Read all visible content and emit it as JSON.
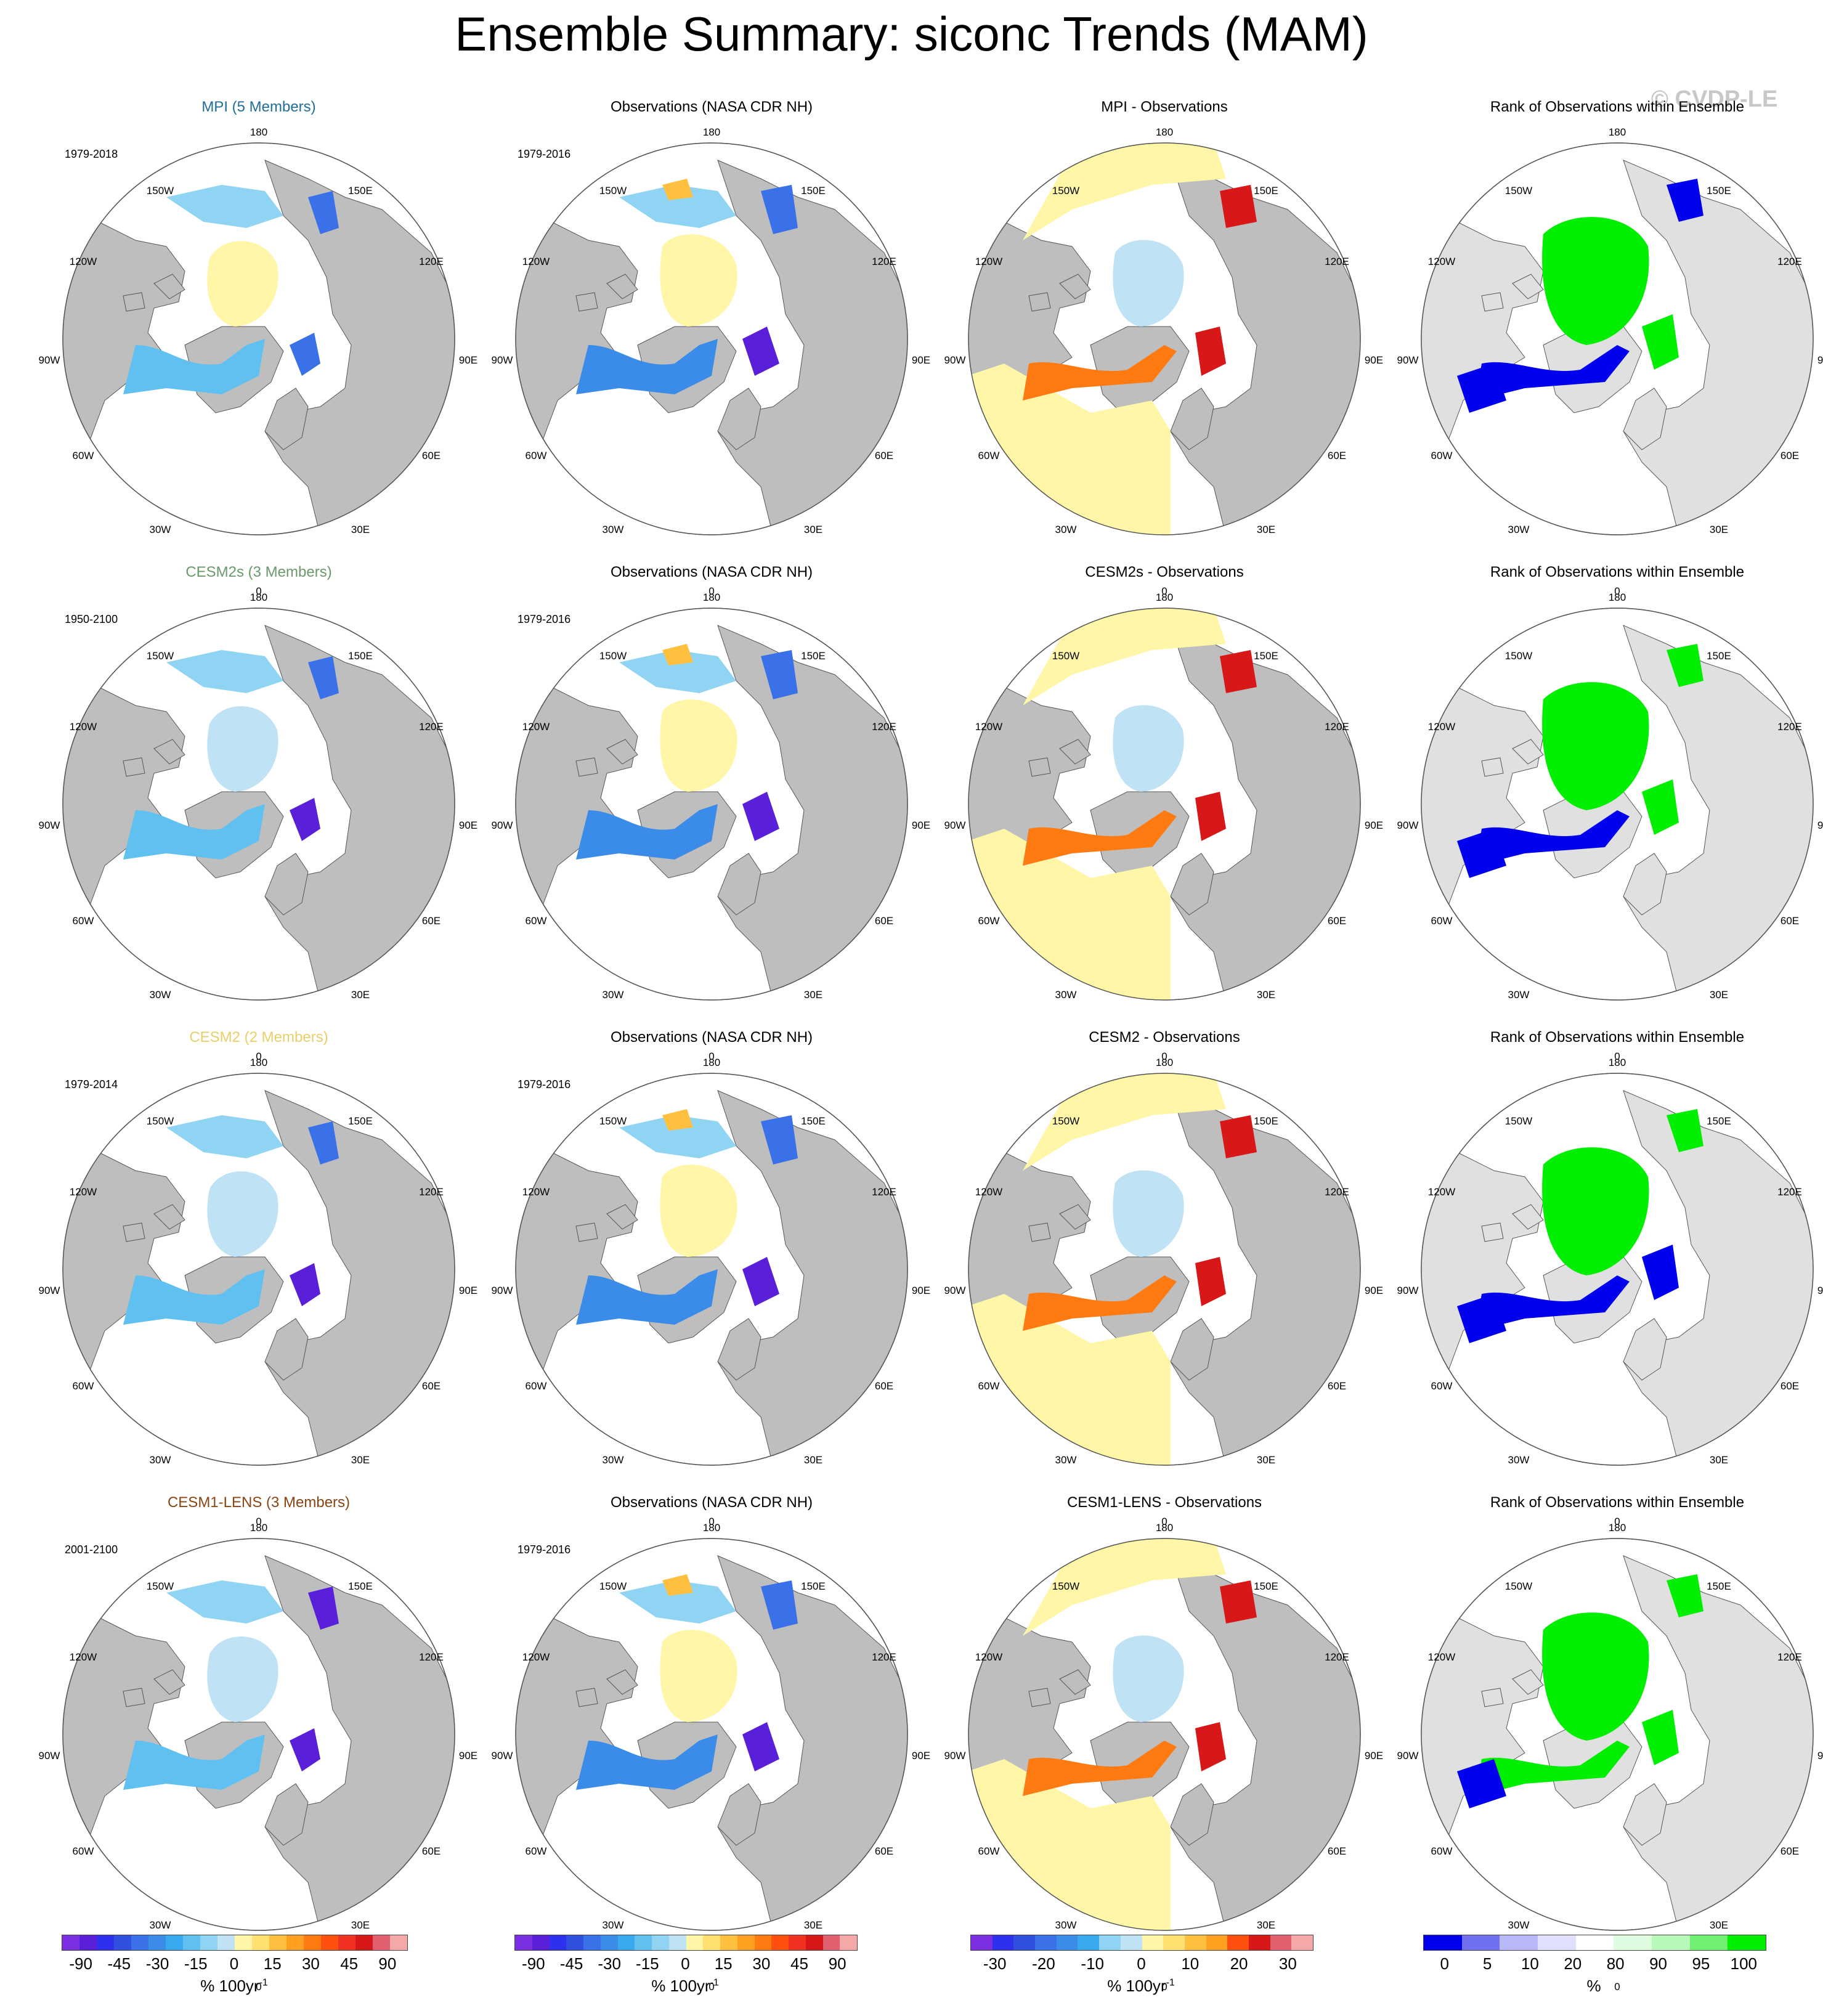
{
  "title": "Ensemble Summary: siconc Trends (MAM)",
  "watermark": "© CVDP-LE",
  "lon_labels": {
    "top": "180",
    "bottom": "0",
    "left_hi": "90W",
    "right_hi": "90E",
    "tl1": "150W",
    "tr1": "150E",
    "tl2": "120W",
    "tr2": "120E",
    "bl1": "60W",
    "br1": "60E",
    "bl2": "30W",
    "br2": "30E"
  },
  "rows": [
    {
      "model_title": "MPI (5 Members)",
      "model_color": "#1f6f9a",
      "model_period": "1979-2018",
      "obs_title": "Observations (NASA CDR NH)",
      "obs_period": "1979-2016",
      "diff_title": "MPI - Observations",
      "rank_title": "Rank of Observations within Ensemble"
    },
    {
      "model_title": "CESM2s (3 Members)",
      "model_color": "#6a9a6a",
      "model_period": "1950-2100",
      "obs_title": "Observations (NASA CDR NH)",
      "obs_period": "1979-2016",
      "diff_title": "CESM2s - Observations",
      "rank_title": "Rank of Observations within Ensemble"
    },
    {
      "model_title": "CESM2 (2 Members)",
      "model_color": "#e8cf6a",
      "model_period": "1979-2014",
      "obs_title": "Observations (NASA CDR NH)",
      "obs_period": "1979-2016",
      "diff_title": "CESM2 - Observations",
      "rank_title": "Rank of Observations within Ensemble"
    },
    {
      "model_title": "CESM1-LENS (3 Members)",
      "model_color": "#8b4513",
      "model_period": "2001-2100",
      "obs_title": "Observations (NASA CDR NH)",
      "obs_period": "1979-2016",
      "diff_title": "CESM1-LENS - Observations",
      "rank_title": "Rank of Observations within Ensemble"
    }
  ],
  "colorbars": {
    "trend": {
      "colors": [
        "#7b2fe0",
        "#5a1fd8",
        "#2f2ff0",
        "#3050e0",
        "#3a70e8",
        "#3a8ce8",
        "#3aaaf0",
        "#60c0f0",
        "#90d4f4",
        "#bfe3f4",
        "#fff6a8",
        "#ffe070",
        "#ffc040",
        "#ffa020",
        "#ff7a10",
        "#ff5010",
        "#f03020",
        "#d81818",
        "#e06070",
        "#f5a8a8"
      ],
      "ticks": [
        "-90",
        "-45",
        "-30",
        "-15",
        "0",
        "15",
        "30",
        "45",
        "90"
      ],
      "units": "% 100yr",
      "units_sup": "-1"
    },
    "diff": {
      "colors": [
        "#7b2fe0",
        "#2f2ff0",
        "#3050e0",
        "#3a70e8",
        "#3a8ce8",
        "#3aaaf0",
        "#90d4f4",
        "#bfe3f4",
        "#fff6a8",
        "#ffe070",
        "#ffc040",
        "#ffa020",
        "#ff5010",
        "#d81818",
        "#e06070",
        "#f5a8a8"
      ],
      "ticks": [
        "-30",
        "-20",
        "-10",
        "0",
        "10",
        "20",
        "30"
      ],
      "units": "% 100yr",
      "units_sup": "-1"
    },
    "rank": {
      "colors": [
        "#0000ee",
        "#7070f0",
        "#b8b8f8",
        "#e0e0fc",
        "#ffffff",
        "#e0fce0",
        "#b8f8b8",
        "#70f070",
        "#00ee00"
      ],
      "ticks": [
        "0",
        "5",
        "10",
        "20",
        "80",
        "90",
        "95",
        "100"
      ],
      "units": "%"
    }
  }
}
